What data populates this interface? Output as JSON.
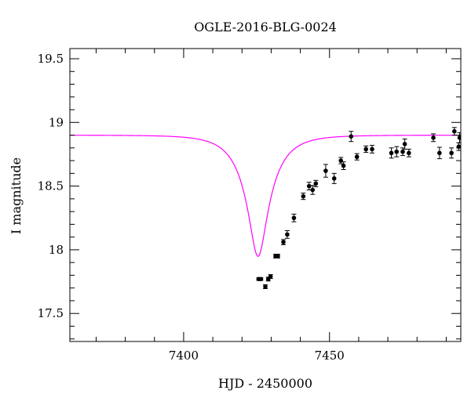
{
  "chart_data": {
    "type": "scatter",
    "title": "OGLE-2016-BLG-0024",
    "xlabel": "HJD - 2450000",
    "ylabel": "I magnitude",
    "xlim": [
      7361,
      7495
    ],
    "ylim": [
      19.58,
      17.28
    ],
    "y_inverted": true,
    "x_ticks": [
      7400,
      7450
    ],
    "y_ticks": [
      17.5,
      18,
      18.5,
      19,
      19.5
    ],
    "x_tick_labels": [
      "7400",
      "7450"
    ],
    "y_tick_labels": [
      "17.5",
      "18",
      "18.5",
      "19",
      "19.5"
    ],
    "grid": false,
    "model_color": "#ff00ff",
    "point_color": "#000000",
    "model": {
      "name": "",
      "t0": 7425.5,
      "tE": 10.2,
      "u0": 0.27,
      "I_base": 18.9,
      "fs": 0.5
    },
    "points": [
      {
        "x": 7425.7,
        "y": 17.77,
        "err": 0.01
      },
      {
        "x": 7426.5,
        "y": 17.77,
        "err": 0.01
      },
      {
        "x": 7428.0,
        "y": 17.71,
        "err": 0.015
      },
      {
        "x": 7429.0,
        "y": 17.77,
        "err": 0.015
      },
      {
        "x": 7429.8,
        "y": 17.79,
        "err": 0.015
      },
      {
        "x": 7431.5,
        "y": 17.95,
        "err": 0.015
      },
      {
        "x": 7432.3,
        "y": 17.95,
        "err": 0.015
      },
      {
        "x": 7434.2,
        "y": 18.06,
        "err": 0.02
      },
      {
        "x": 7435.5,
        "y": 18.12,
        "err": 0.03
      },
      {
        "x": 7437.8,
        "y": 18.25,
        "err": 0.03
      },
      {
        "x": 7441.0,
        "y": 18.42,
        "err": 0.025
      },
      {
        "x": 7443.0,
        "y": 18.5,
        "err": 0.03
      },
      {
        "x": 7444.2,
        "y": 18.47,
        "err": 0.035
      },
      {
        "x": 7445.3,
        "y": 18.52,
        "err": 0.025
      },
      {
        "x": 7448.7,
        "y": 18.62,
        "err": 0.05
      },
      {
        "x": 7451.6,
        "y": 18.56,
        "err": 0.04
      },
      {
        "x": 7453.9,
        "y": 18.7,
        "err": 0.025
      },
      {
        "x": 7454.8,
        "y": 18.66,
        "err": 0.03
      },
      {
        "x": 7457.4,
        "y": 18.89,
        "err": 0.04
      },
      {
        "x": 7459.4,
        "y": 18.73,
        "err": 0.025
      },
      {
        "x": 7462.5,
        "y": 18.79,
        "err": 0.025
      },
      {
        "x": 7464.6,
        "y": 18.79,
        "err": 0.03
      },
      {
        "x": 7471.2,
        "y": 18.76,
        "err": 0.04
      },
      {
        "x": 7473.0,
        "y": 18.77,
        "err": 0.04
      },
      {
        "x": 7475.1,
        "y": 18.77,
        "err": 0.03
      },
      {
        "x": 7475.8,
        "y": 18.83,
        "err": 0.04
      },
      {
        "x": 7477.2,
        "y": 18.76,
        "err": 0.03
      },
      {
        "x": 7485.6,
        "y": 18.88,
        "err": 0.03
      },
      {
        "x": 7487.7,
        "y": 18.76,
        "err": 0.045
      },
      {
        "x": 7491.8,
        "y": 18.76,
        "err": 0.04
      },
      {
        "x": 7492.8,
        "y": 18.93,
        "err": 0.03
      },
      {
        "x": 7494.3,
        "y": 18.81,
        "err": 0.03
      },
      {
        "x": 7494.6,
        "y": 18.88,
        "err": 0.04
      }
    ]
  }
}
